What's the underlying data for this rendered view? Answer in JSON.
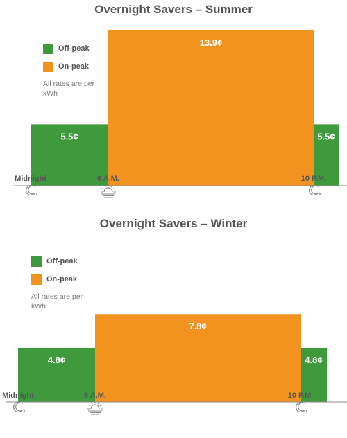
{
  "colors": {
    "off_peak": "#3f9a3d",
    "on_peak": "#f29320",
    "axis": "#888888",
    "label": "#555555"
  },
  "chart_data": [
    {
      "type": "bar",
      "title": "Overnight Savers – Summer",
      "legend": [
        {
          "name": "Off-peak",
          "color": "#3f9a3d"
        },
        {
          "name": "On-peak",
          "color": "#f29320"
        }
      ],
      "legend_note": "All rates are per kWh",
      "legend_placement": "top-left",
      "x_ticks": [
        {
          "label": "Midnight",
          "hour": 0,
          "icon": "moon-icon"
        },
        {
          "label": "6 A.M.",
          "hour": 6,
          "icon": "sunrise-icon"
        },
        {
          "label": "10 P.M.",
          "hour": 22,
          "icon": "moon-icon"
        }
      ],
      "segments": [
        {
          "start_hour": 0,
          "end_hour": 6,
          "period": "Off-peak",
          "rate_cents": 5.5,
          "label": "5.5¢"
        },
        {
          "start_hour": 6,
          "end_hour": 22,
          "period": "On-peak",
          "rate_cents": 13.9,
          "label": "13.9¢"
        },
        {
          "start_hour": 22,
          "end_hour": 24,
          "period": "Off-peak",
          "rate_cents": 5.5,
          "label": "5.5¢"
        }
      ],
      "ylim": [
        0,
        13.9
      ],
      "grid": false
    },
    {
      "type": "bar",
      "title": "Overnight Savers – Winter",
      "legend": [
        {
          "name": "Off-peak",
          "color": "#3f9a3d"
        },
        {
          "name": "On-peak",
          "color": "#f29320"
        }
      ],
      "legend_note": "All rates are per kWh",
      "legend_placement": "top-left",
      "x_ticks": [
        {
          "label": "Midnight",
          "hour": 0,
          "icon": "moon-icon"
        },
        {
          "label": "6 A.M.",
          "hour": 6,
          "icon": "sunrise-icon"
        },
        {
          "label": "10 P.M.",
          "hour": 22,
          "icon": "moon-icon"
        }
      ],
      "segments": [
        {
          "start_hour": 0,
          "end_hour": 6,
          "period": "Off-peak",
          "rate_cents": 4.8,
          "label": "4.8¢"
        },
        {
          "start_hour": 6,
          "end_hour": 22,
          "period": "On-peak",
          "rate_cents": 7.8,
          "label": "7.8¢"
        },
        {
          "start_hour": 22,
          "end_hour": 24,
          "period": "Off-peak",
          "rate_cents": 4.8,
          "label": "4.8¢"
        }
      ],
      "ylim": [
        0,
        13.9
      ],
      "grid": false
    }
  ]
}
